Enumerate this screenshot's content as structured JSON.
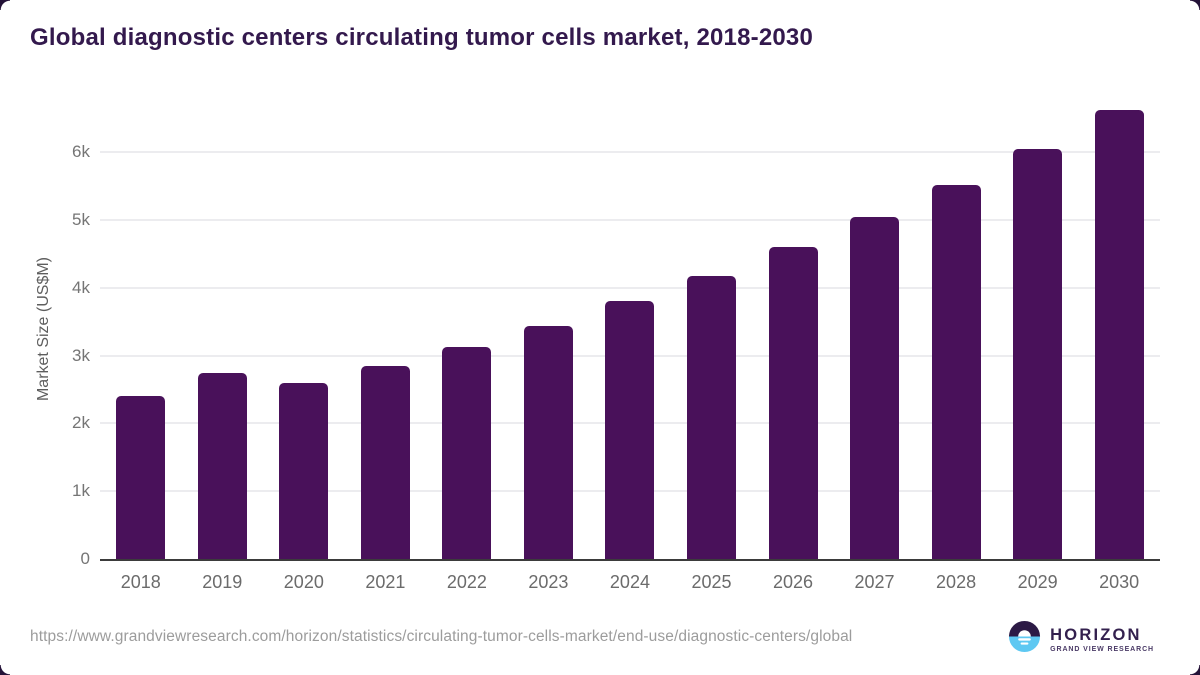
{
  "title": "Global diagnostic centers circulating tumor cells market, 2018-2030",
  "chart_data": {
    "type": "bar",
    "title": "Global diagnostic centers circulating tumor cells market, 2018-2030",
    "categories": [
      "2018",
      "2019",
      "2020",
      "2021",
      "2022",
      "2023",
      "2024",
      "2025",
      "2026",
      "2027",
      "2028",
      "2029",
      "2030"
    ],
    "values": [
      2410,
      2740,
      2600,
      2840,
      3130,
      3440,
      3800,
      4180,
      4600,
      5050,
      5520,
      6050,
      6630
    ],
    "xlabel": "",
    "ylabel": "Market Size (US$M)",
    "ylim": [
      0,
      6800
    ],
    "yticks": [
      {
        "label": "0",
        "value": 0
      },
      {
        "label": "1k",
        "value": 1000
      },
      {
        "label": "2k",
        "value": 2000
      },
      {
        "label": "3k",
        "value": 3000
      },
      {
        "label": "4k",
        "value": 4000
      },
      {
        "label": "5k",
        "value": 5000
      },
      {
        "label": "6k",
        "value": 6000
      }
    ],
    "grid": true,
    "legend": false,
    "bar_color": "#49115a"
  },
  "footer": {
    "source_url": "https://www.grandviewresearch.com/horizon/statistics/circulating-tumor-cells-market/end-use/diagnostic-centers/global",
    "logo": {
      "name": "HORIZON",
      "tagline": "GRAND VIEW RESEARCH"
    }
  },
  "colors": {
    "bar": "#49115a",
    "title_text": "#33194d",
    "axis_line": "#3b3b3b",
    "gridline": "#ececef",
    "tick_text": "#757575",
    "url_text": "#9c9c9c",
    "logo_dark": "#2c1a45",
    "logo_blue": "#5ec8f2"
  }
}
